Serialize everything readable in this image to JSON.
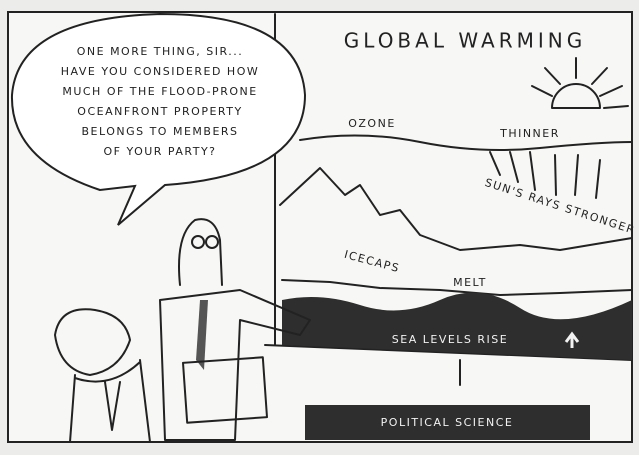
{
  "speech_bubble": {
    "lines": [
      "ONE MORE THING, SIR...",
      "HAVE YOU CONSIDERED HOW",
      "MUCH OF THE FLOOD-PRONE",
      "OCEANFRONT PROPERTY",
      "BELONGS TO MEMBERS",
      "OF YOUR PARTY?"
    ]
  },
  "board": {
    "title": "GLOBAL WARMING",
    "ozone": "OZONE",
    "thinner": "THINNER",
    "rays": "SUN'S RAYS STRONGER",
    "icecaps": "ICECAPS",
    "melt": "MELT",
    "sea": "SEA LEVELS RISE"
  },
  "sign": {
    "text": "POLITICAL SCIENCE"
  }
}
